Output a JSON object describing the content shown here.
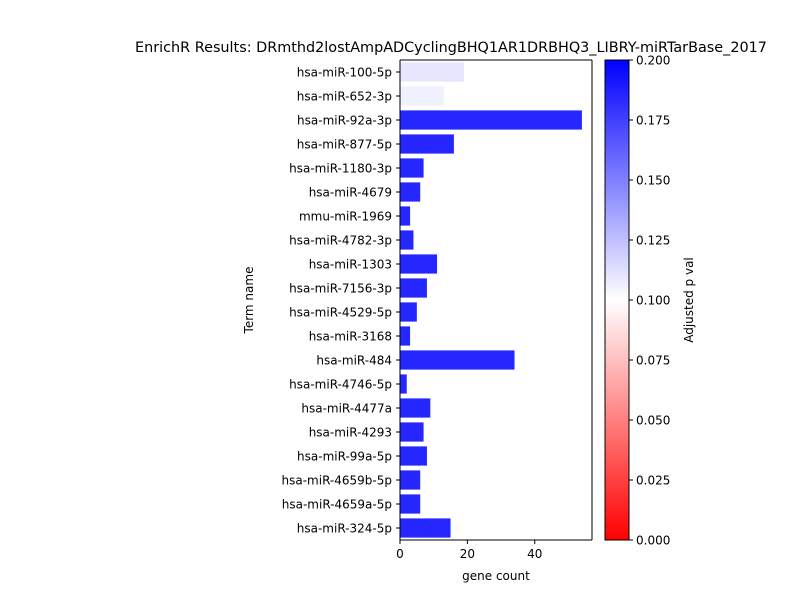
{
  "chart_data": {
    "type": "bar",
    "orientation": "horizontal",
    "title": "EnrichR Results: DRmthd2lostAmpADCyclingBHQ1AR1DRBHQ3_LIBRY-miRTarBase_2017",
    "xlabel": "gene count",
    "ylabel": "Term name",
    "xlim": [
      0,
      57
    ],
    "xticks": [
      0,
      20,
      40
    ],
    "categories": [
      "hsa-miR-100-5p",
      "hsa-miR-652-3p",
      "hsa-miR-92a-3p",
      "hsa-miR-877-5p",
      "hsa-miR-1180-3p",
      "hsa-miR-4679",
      "mmu-miR-1969",
      "hsa-miR-4782-3p",
      "hsa-miR-1303",
      "hsa-miR-7156-3p",
      "hsa-miR-4529-5p",
      "hsa-miR-3168",
      "hsa-miR-484",
      "hsa-miR-4746-5p",
      "hsa-miR-4477a",
      "hsa-miR-4293",
      "hsa-miR-99a-5p",
      "hsa-miR-4659b-5p",
      "hsa-miR-4659a-5p",
      "hsa-miR-324-5p"
    ],
    "values": [
      19,
      13,
      54,
      16,
      7,
      6,
      3,
      4,
      11,
      8,
      5,
      3,
      34,
      2,
      9,
      7,
      8,
      6,
      6,
      15
    ],
    "adjusted_p_values": [
      0.11,
      0.106,
      0.185,
      0.185,
      0.185,
      0.185,
      0.185,
      0.185,
      0.185,
      0.185,
      0.185,
      0.185,
      0.185,
      0.185,
      0.185,
      0.185,
      0.185,
      0.185,
      0.185,
      0.185
    ],
    "colorbar": {
      "label": "Adjusted p val",
      "range": [
        0.0,
        0.2
      ],
      "ticks": [
        "0.000",
        "0.025",
        "0.050",
        "0.075",
        "0.100",
        "0.125",
        "0.150",
        "0.175",
        "0.200"
      ],
      "colors": [
        "#ff0000",
        "#ffffff",
        "#0000ff"
      ]
    },
    "grid": false,
    "legend": "none"
  }
}
